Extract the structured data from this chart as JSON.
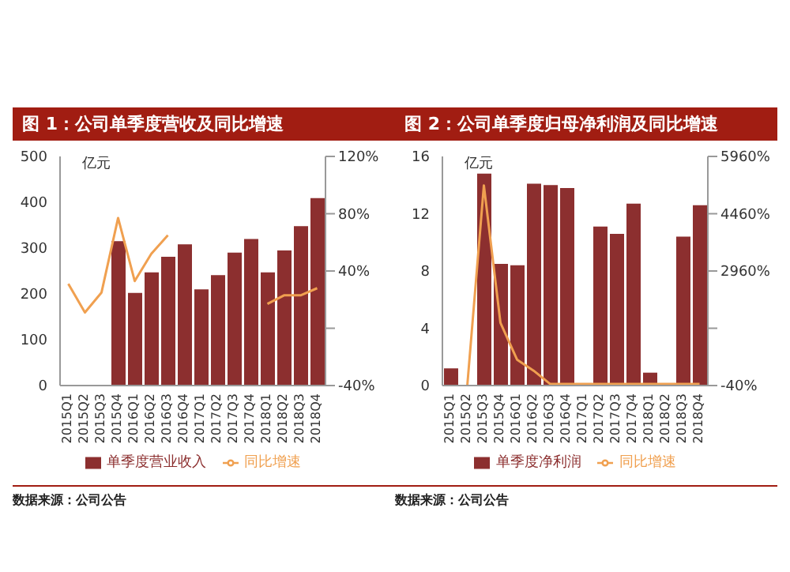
{
  "chart_data": [
    {
      "type": "bar",
      "title": "图 1：公司单季度营收及同比增速",
      "ylabel": "亿元",
      "categories": [
        "2015Q1",
        "2015Q2",
        "2015Q3",
        "2015Q4",
        "2016Q1",
        "2016Q2",
        "2016Q3",
        "2016Q4",
        "2017Q1",
        "2017Q2",
        "2017Q3",
        "2017Q4",
        "2018Q1",
        "2018Q2",
        "2018Q3",
        "2018Q4"
      ],
      "series": [
        {
          "name": "单季度营业收入",
          "color": "#8c2f2f",
          "values": [
            null,
            null,
            null,
            315,
            202,
            247,
            281,
            308,
            210,
            241,
            290,
            320,
            247,
            295,
            348,
            409
          ]
        },
        {
          "name": "同比增速",
          "type": "line",
          "axis": "y2",
          "color": "#f0a050",
          "values": [
            31,
            11,
            25,
            77,
            33,
            52,
            65,
            null,
            null,
            null,
            null,
            null,
            17,
            23,
            23,
            28
          ]
        }
      ],
      "ylim": [
        0,
        500
      ],
      "yticks": [
        0,
        100,
        200,
        300,
        400,
        500
      ],
      "y2lim": [
        -40,
        120
      ],
      "y2ticks": [
        {
          "value": -40,
          "label": "-40%"
        },
        {
          "value": 0,
          "label": null
        },
        {
          "value": 40,
          "label": "40%"
        },
        {
          "value": 80,
          "label": "80%"
        },
        {
          "value": 120,
          "label": "120%"
        }
      ],
      "legend": "bottom",
      "marker": "none",
      "line_style": "solid",
      "grid": false,
      "annotations": [
        "数据来源：公司公告"
      ]
    },
    {
      "type": "bar",
      "title": "图 2：公司单季度归母净利润及同比增速",
      "ylabel": "亿元",
      "categories": [
        "2015Q1",
        "2015Q2",
        "2015Q3",
        "2015Q4",
        "2016Q1",
        "2016Q2",
        "2016Q3",
        "2016Q4",
        "2017Q1",
        "2017Q2",
        "2017Q3",
        "2017Q4",
        "2018Q1",
        "2018Q2",
        "2018Q3",
        "2018Q4"
      ],
      "series": [
        {
          "name": "单季度净利润",
          "color": "#8c2f2f",
          "values": [
            1.2,
            null,
            14.8,
            8.5,
            8.4,
            14.1,
            14.0,
            13.8,
            null,
            11.1,
            10.6,
            12.7,
            0.9,
            null,
            10.4,
            12.6
          ]
        },
        {
          "name": "同比增速",
          "type": "line",
          "axis": "y2",
          "color": "#f0a050",
          "values": [
            null,
            -40,
            5200,
            1600,
            640,
            350,
            0,
            0,
            0,
            0,
            0,
            0,
            0,
            0,
            0,
            0
          ]
        }
      ],
      "ylim": [
        0,
        16
      ],
      "yticks": [
        0,
        4,
        8,
        12,
        16
      ],
      "y2lim": [
        -40,
        5960
      ],
      "y2ticks": [
        {
          "value": -40,
          "label": "-40%"
        },
        {
          "value": 1460,
          "label": null
        },
        {
          "value": 2960,
          "label": "2960%"
        },
        {
          "value": 4460,
          "label": "4460%"
        },
        {
          "value": 5960,
          "label": "5960%"
        }
      ],
      "legend": "bottom",
      "marker": "none",
      "line_style": "solid",
      "grid": false,
      "annotations": [
        "数据来源：公司公告"
      ]
    }
  ]
}
